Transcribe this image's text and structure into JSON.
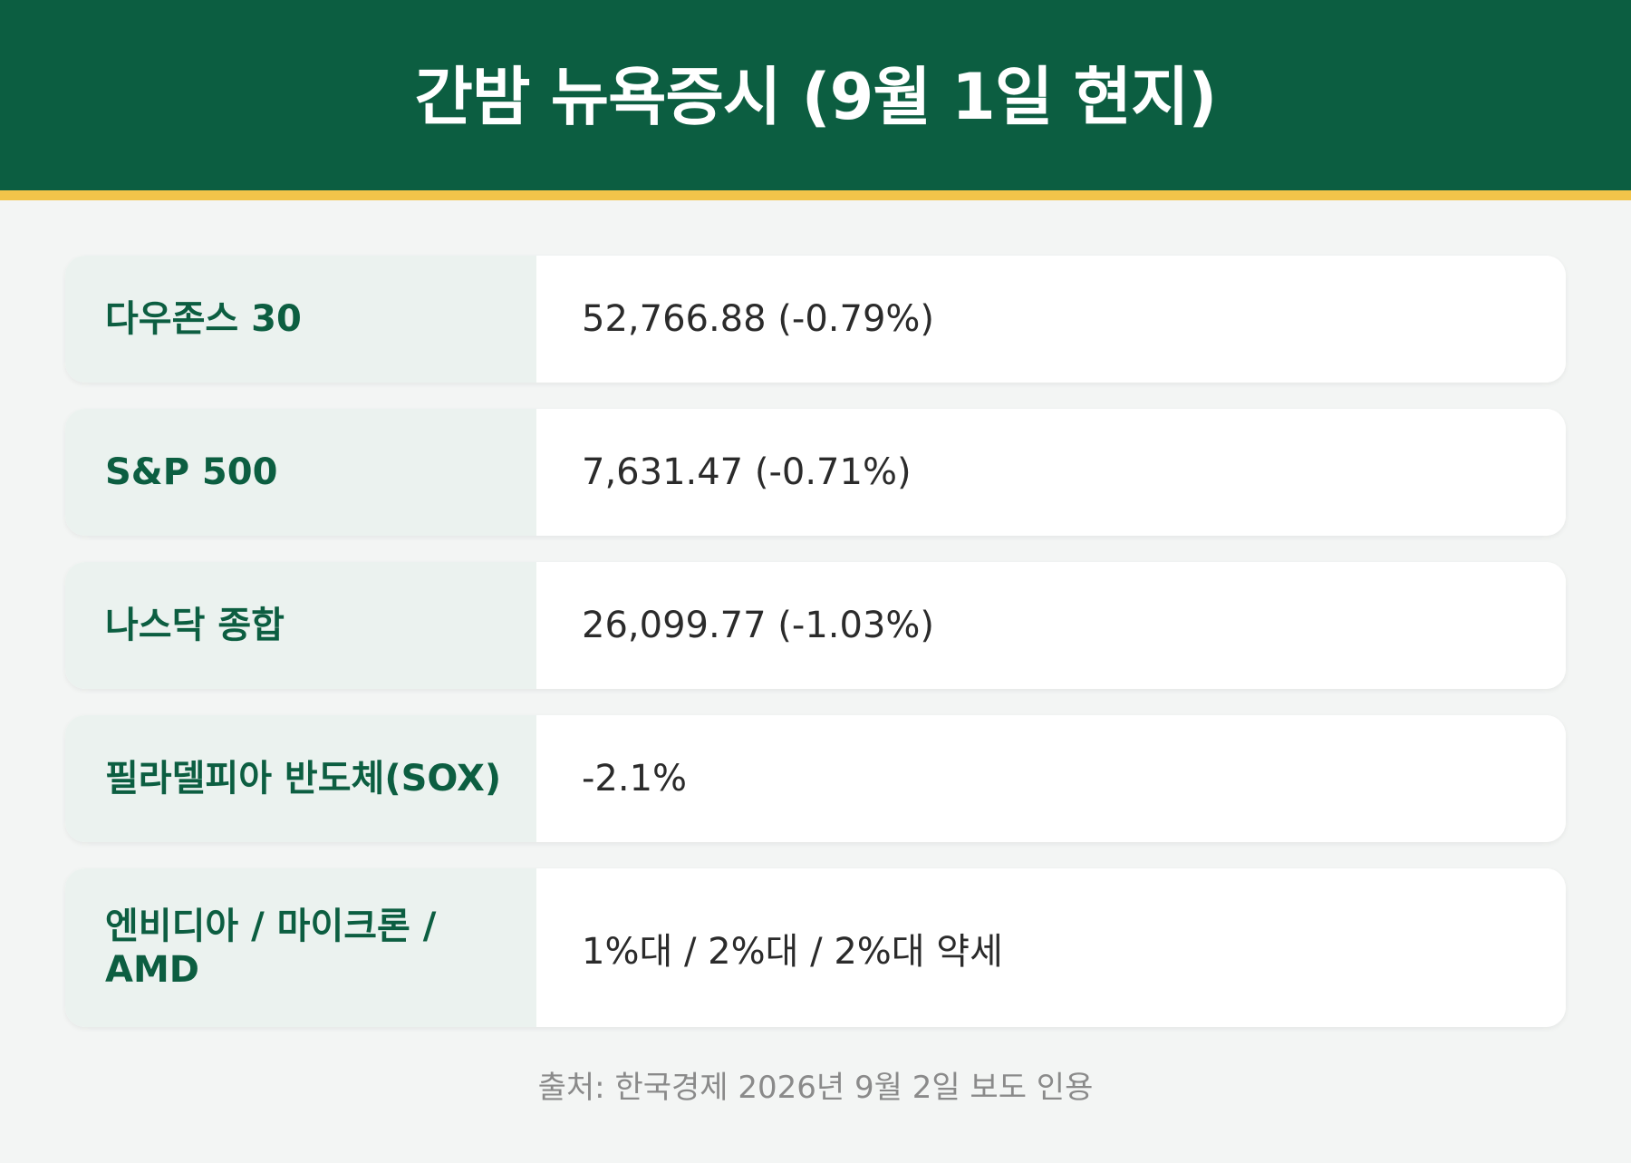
{
  "header": {
    "title": "간밤 뉴욕증시 (9월 1일 현지)"
  },
  "colors": {
    "header_bg": "#0c5e41",
    "accent_bar": "#f2c44a",
    "label_bg": "#ebf2ef",
    "label_text": "#0c5e41",
    "page_bg": "#f3f5f4"
  },
  "rows": [
    {
      "label": "다우존스 30",
      "value": "52,766.88 (-0.79%)"
    },
    {
      "label": "S&P 500",
      "value": "7,631.47 (-0.71%)"
    },
    {
      "label": "나스닥 종합",
      "value": "26,099.77 (-1.03%)"
    },
    {
      "label": "필라델피아 반도체(SOX)",
      "value": "-2.1%"
    },
    {
      "label": "엔비디아 / 마이크론 / AMD",
      "value": "1%대 / 2%대 / 2%대 약세"
    }
  ],
  "footer": {
    "source": "출처: 한국경제 2026년 9월 2일 보도 인용"
  }
}
